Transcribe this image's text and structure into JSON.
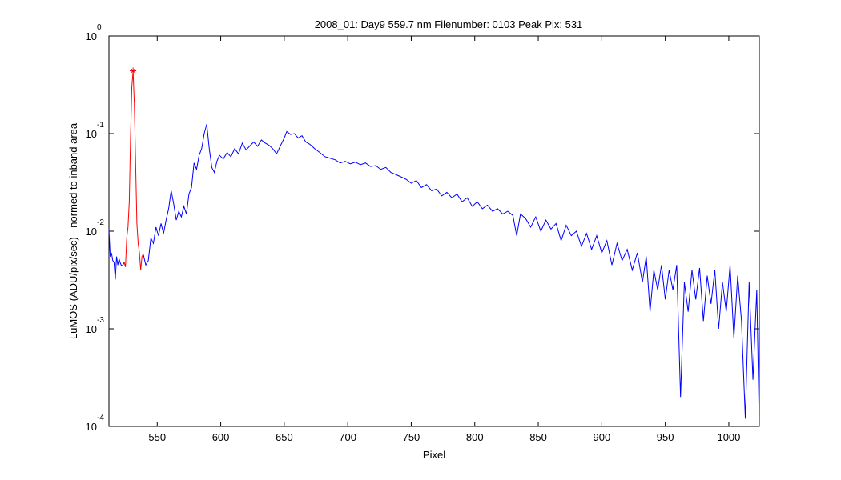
{
  "chart_data": {
    "type": "line",
    "title": "2008_01: Day9  559.7 nm  Filenumber: 0103 Peak Pix: 531",
    "xlabel": "Pixel",
    "ylabel": "LuMOS (ADU/pix/sec) - normed to inband area",
    "xlim": [
      512,
      1024
    ],
    "ylim": [
      0.0001,
      1
    ],
    "yscale": "log",
    "xticks": [
      550,
      600,
      650,
      700,
      750,
      800,
      850,
      900,
      950,
      1000
    ],
    "yticks": [
      {
        "value": 0.0001,
        "label": "10",
        "exponent": "-4"
      },
      {
        "value": 0.001,
        "label": "10",
        "exponent": "-3"
      },
      {
        "value": 0.01,
        "label": "10",
        "exponent": "-2"
      },
      {
        "value": 0.1,
        "label": "10",
        "exponent": "-1"
      },
      {
        "value": 1,
        "label": "10",
        "exponent": "0"
      }
    ],
    "grid": false,
    "series": [
      {
        "color": "#0000ff",
        "x": [
          512,
          513,
          514,
          515,
          516,
          517,
          518,
          519,
          520,
          521,
          522,
          523,
          524
        ],
        "values": [
          0.0105,
          0.0055,
          0.006,
          0.005,
          0.0048,
          0.0032,
          0.0055,
          0.0045,
          0.0052,
          0.0047,
          0.0044,
          0.0045,
          0.0048
        ]
      },
      {
        "color": "#ff0000",
        "x": [
          524,
          525,
          526,
          527,
          528,
          529,
          530,
          531,
          532,
          533,
          534,
          535,
          536,
          537,
          538,
          539
        ],
        "values": [
          0.0048,
          0.0043,
          0.0085,
          0.011,
          0.02,
          0.09,
          0.3,
          0.44,
          0.2,
          0.05,
          0.012,
          0.0075,
          0.006,
          0.004,
          0.0055,
          0.0058
        ]
      },
      {
        "color": "#0000ff",
        "x": [
          539,
          541,
          543,
          545,
          547,
          549,
          551,
          553,
          555,
          557,
          559,
          561,
          563,
          565,
          567,
          569,
          571,
          573,
          575,
          577,
          579,
          581,
          583,
          585,
          587,
          589,
          591,
          593,
          595,
          597,
          599,
          602,
          605,
          608,
          611,
          614,
          617,
          620,
          623,
          626,
          629,
          632,
          635,
          638,
          641,
          644,
          647,
          650,
          652,
          655,
          658,
          661,
          664,
          667,
          670,
          674,
          678,
          682,
          686,
          690,
          694,
          698,
          702,
          706,
          710,
          714,
          718,
          722,
          726,
          730,
          734,
          738,
          742,
          746,
          750,
          754,
          758,
          762,
          766,
          770,
          774,
          778,
          782,
          786,
          790,
          794,
          798,
          802,
          806,
          810,
          814,
          818,
          822,
          826,
          830,
          833,
          836,
          840,
          844,
          848,
          852,
          856,
          860,
          864,
          868,
          872,
          876,
          880,
          884,
          888,
          892,
          896,
          900,
          904,
          908,
          912,
          916,
          920,
          924,
          928,
          932,
          935,
          938,
          941,
          944,
          947,
          950,
          953,
          956,
          959,
          962,
          965,
          968,
          971,
          974,
          977,
          980,
          983,
          986,
          989,
          992,
          995,
          998,
          1001,
          1004,
          1007,
          1010,
          1013,
          1016,
          1019,
          1022,
          1024
        ],
        "values": [
          0.0058,
          0.0045,
          0.005,
          0.0085,
          0.0075,
          0.011,
          0.009,
          0.012,
          0.0095,
          0.013,
          0.017,
          0.026,
          0.019,
          0.013,
          0.016,
          0.014,
          0.018,
          0.015,
          0.024,
          0.028,
          0.05,
          0.043,
          0.06,
          0.07,
          0.1,
          0.125,
          0.07,
          0.045,
          0.04,
          0.052,
          0.06,
          0.055,
          0.064,
          0.058,
          0.07,
          0.062,
          0.08,
          0.068,
          0.075,
          0.082,
          0.074,
          0.086,
          0.08,
          0.076,
          0.07,
          0.062,
          0.075,
          0.09,
          0.105,
          0.098,
          0.1,
          0.09,
          0.095,
          0.082,
          0.078,
          0.07,
          0.064,
          0.058,
          0.056,
          0.054,
          0.05,
          0.052,
          0.049,
          0.051,
          0.048,
          0.05,
          0.046,
          0.047,
          0.043,
          0.045,
          0.04,
          0.038,
          0.036,
          0.034,
          0.031,
          0.033,
          0.028,
          0.03,
          0.026,
          0.027,
          0.023,
          0.025,
          0.022,
          0.024,
          0.02,
          0.022,
          0.018,
          0.02,
          0.017,
          0.0185,
          0.016,
          0.017,
          0.015,
          0.016,
          0.0145,
          0.009,
          0.015,
          0.0135,
          0.011,
          0.014,
          0.01,
          0.013,
          0.0105,
          0.012,
          0.008,
          0.0115,
          0.009,
          0.01,
          0.007,
          0.0095,
          0.0065,
          0.009,
          0.006,
          0.008,
          0.0045,
          0.0075,
          0.005,
          0.0065,
          0.004,
          0.006,
          0.003,
          0.0055,
          0.0015,
          0.004,
          0.0025,
          0.0045,
          0.002,
          0.004,
          0.0025,
          0.0045,
          0.0002,
          0.003,
          0.0015,
          0.004,
          0.002,
          0.0042,
          0.0012,
          0.0035,
          0.0018,
          0.004,
          0.001,
          0.003,
          0.0015,
          0.0045,
          0.0008,
          0.0035,
          0.0012,
          0.00012,
          0.003,
          0.0003,
          0.0025,
          0.0001
        ]
      }
    ],
    "peak": {
      "x": 531,
      "value": 0.44,
      "color": "#ff0000",
      "marker": "*"
    }
  }
}
